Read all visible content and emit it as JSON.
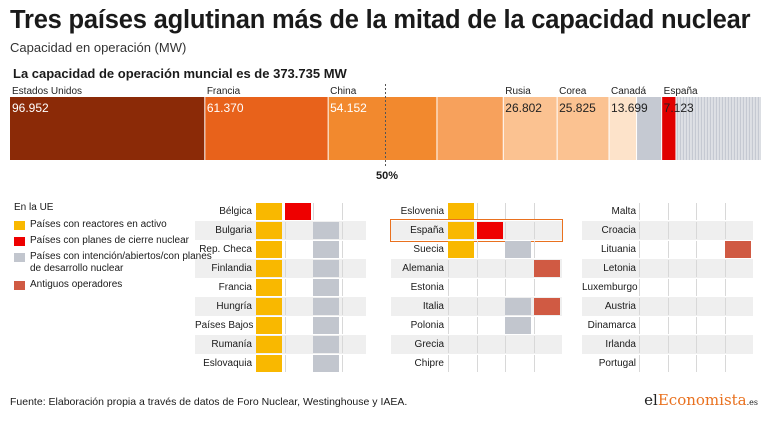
{
  "header": {
    "title": "Tres países aglutinan más de la mitad de la capacidad nuclear",
    "subtitle": "Capacidad en operación (MW)",
    "total": "La capacidad de operación muncial es de 373.735 MW"
  },
  "chart_data": [
    {
      "type": "bar",
      "subtype": "stacked-horizontal-100",
      "total": 373735,
      "midpoint_label": "50%",
      "segments": [
        {
          "name": "Estados Unidos",
          "value": 96952,
          "value_label": "96.952",
          "color": "#8b2a07"
        },
        {
          "name": "Francia",
          "value": 61370,
          "value_label": "61.370",
          "color": "#e8621b"
        },
        {
          "name": "China",
          "value": 54152,
          "value_label": "54.152",
          "color": "#f2892e"
        },
        {
          "name": "",
          "value": 33000,
          "value_label": "",
          "color": "#f7a15c"
        },
        {
          "name": "Rusia",
          "value": 26802,
          "value_label": "26.802",
          "color": "#fbc291"
        },
        {
          "name": "Corea",
          "value": 25825,
          "value_label": "25.825",
          "color": "#fbc291"
        },
        {
          "name": "Canadá",
          "value": 13699,
          "value_label": "13.699",
          "color": "#fde3ca"
        },
        {
          "name": "",
          "value": 12500,
          "value_label": "",
          "color": "#c5c9d2"
        },
        {
          "name": "España",
          "value": 7123,
          "value_label": "7.123",
          "color": "#e00000"
        },
        {
          "name": "",
          "value": 42312,
          "value_label": "",
          "color": "#c5c9d2",
          "striped": true
        }
      ]
    },
    {
      "type": "table",
      "title": "En la UE",
      "categories": [
        {
          "key": "active",
          "label": "Países con reactores en activo",
          "color": "#f9b800"
        },
        {
          "key": "closing",
          "label": "Países con planes de cierre nuclear",
          "color": "#ee0000"
        },
        {
          "key": "developing",
          "label": "Países con intención/abiertos/con planes de desarrollo nuclear",
          "color": "#c2c6ce"
        },
        {
          "key": "former",
          "label": "Antiguos operadores",
          "color": "#d05a43"
        }
      ],
      "panels": [
        {
          "rows": [
            {
              "country": "Bélgica",
              "active": true,
              "closing": true,
              "developing": false,
              "former": false
            },
            {
              "country": "Bulgaria",
              "active": true,
              "closing": false,
              "developing": true,
              "former": false
            },
            {
              "country": "Rep. Checa",
              "active": true,
              "closing": false,
              "developing": true,
              "former": false
            },
            {
              "country": "Finlandia",
              "active": true,
              "closing": false,
              "developing": true,
              "former": false
            },
            {
              "country": "Francia",
              "active": true,
              "closing": false,
              "developing": true,
              "former": false
            },
            {
              "country": "Hungría",
              "active": true,
              "closing": false,
              "developing": true,
              "former": false
            },
            {
              "country": "Países Bajos",
              "active": true,
              "closing": false,
              "developing": true,
              "former": false
            },
            {
              "country": "Rumanía",
              "active": true,
              "closing": false,
              "developing": true,
              "former": false
            },
            {
              "country": "Eslovaquia",
              "active": true,
              "closing": false,
              "developing": true,
              "former": false
            }
          ]
        },
        {
          "rows": [
            {
              "country": "Eslovenia",
              "active": true,
              "closing": false,
              "developing": false,
              "former": false
            },
            {
              "country": "España",
              "active": true,
              "closing": true,
              "developing": false,
              "former": false,
              "highlight": true
            },
            {
              "country": "Suecia",
              "active": true,
              "closing": false,
              "developing": true,
              "former": false
            },
            {
              "country": "Alemania",
              "active": false,
              "closing": false,
              "developing": false,
              "former": true
            },
            {
              "country": "Estonia",
              "active": false,
              "closing": false,
              "developing": false,
              "former": false
            },
            {
              "country": "Italia",
              "active": false,
              "closing": false,
              "developing": true,
              "former": true
            },
            {
              "country": "Polonia",
              "active": false,
              "closing": false,
              "developing": true,
              "former": false
            },
            {
              "country": "Grecia",
              "active": false,
              "closing": false,
              "developing": false,
              "former": false
            },
            {
              "country": "Chipre",
              "active": false,
              "closing": false,
              "developing": false,
              "former": false
            }
          ]
        },
        {
          "rows": [
            {
              "country": "Malta",
              "active": false,
              "closing": false,
              "developing": false,
              "former": false
            },
            {
              "country": "Croacia",
              "active": false,
              "closing": false,
              "developing": false,
              "former": false
            },
            {
              "country": "Lituania",
              "active": false,
              "closing": false,
              "developing": false,
              "former": true
            },
            {
              "country": "Letonia",
              "active": false,
              "closing": false,
              "developing": false,
              "former": false
            },
            {
              "country": "Luxemburgo",
              "active": false,
              "closing": false,
              "developing": false,
              "former": false
            },
            {
              "country": "Austria",
              "active": false,
              "closing": false,
              "developing": false,
              "former": false
            },
            {
              "country": "Dinamarca",
              "active": false,
              "closing": false,
              "developing": false,
              "former": false
            },
            {
              "country": "Irlanda",
              "active": false,
              "closing": false,
              "developing": false,
              "former": false
            },
            {
              "country": "Portugal",
              "active": false,
              "closing": false,
              "developing": false,
              "former": false
            }
          ]
        }
      ]
    }
  ],
  "footer": {
    "source": "Fuente: Elaboración propia a través de datos de Foro Nuclear, Westinghouse y IAEA.",
    "logo_prefix": "el",
    "logo_brand": "Economista",
    "logo_suffix": ".es"
  }
}
